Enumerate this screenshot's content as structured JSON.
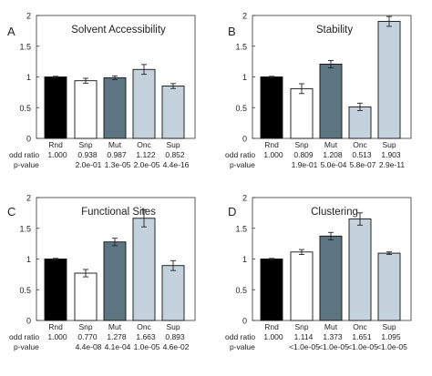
{
  "chart_data": [
    {
      "panel_letter": "A",
      "type": "bar",
      "title": "Solvent Accessibility",
      "categories": [
        "Rnd",
        "Snp",
        "Mut",
        "Onc",
        "Sup"
      ],
      "values": [
        1.0,
        0.938,
        0.987,
        1.122,
        0.852
      ],
      "errors": [
        0.01,
        0.04,
        0.03,
        0.08,
        0.04
      ],
      "odd_ratio_labels": [
        "1.000",
        "0.938",
        "0.987",
        "1.122",
        "0.852"
      ],
      "pvalue_labels": [
        "",
        "2.0e-01",
        "1.3e-05",
        "2.0e-05",
        "4.4e-16"
      ],
      "ylim": [
        0,
        2
      ],
      "yticks": [
        "0",
        "0.5",
        "1",
        "1.5",
        "2"
      ],
      "bar_colors": [
        "#000000",
        "#ffffff",
        "#5c7580",
        "#c3d2dc",
        "#c3d2dc"
      ],
      "row_labels": [
        "odd ratio",
        "p-value"
      ]
    },
    {
      "panel_letter": "B",
      "type": "bar",
      "title": "Stability",
      "categories": [
        "Rnd",
        "Snp",
        "Mut",
        "Onc",
        "Sup"
      ],
      "values": [
        1.0,
        0.809,
        1.208,
        0.513,
        1.903
      ],
      "errors": [
        0.01,
        0.08,
        0.06,
        0.06,
        0.08
      ],
      "odd_ratio_labels": [
        "1.000",
        "0.809",
        "1.208",
        "0.513",
        "1.903"
      ],
      "pvalue_labels": [
        "",
        "1.9e-01",
        "5.0e-04",
        "5.8e-07",
        "2.9e-11"
      ],
      "ylim": [
        0,
        2
      ],
      "yticks": [
        "0",
        "0.5",
        "1",
        "1.5",
        "2"
      ],
      "bar_colors": [
        "#000000",
        "#ffffff",
        "#5c7580",
        "#c3d2dc",
        "#c3d2dc"
      ],
      "row_labels": [
        "odd ratio",
        "p-value"
      ]
    },
    {
      "panel_letter": "C",
      "type": "bar",
      "title": "Functional Sites",
      "categories": [
        "Rnd",
        "Snp",
        "Mut",
        "Onc",
        "Sup"
      ],
      "values": [
        1.0,
        0.77,
        1.278,
        1.663,
        0.893
      ],
      "errors": [
        0.01,
        0.06,
        0.06,
        0.14,
        0.08
      ],
      "odd_ratio_labels": [
        "1.000",
        "0.770",
        "1.278",
        "1.663",
        "0.893"
      ],
      "pvalue_labels": [
        "",
        "4.4e-08",
        "4.1e-04",
        "1.0e-05",
        "4.6e-02"
      ],
      "ylim": [
        0,
        2
      ],
      "yticks": [
        "0",
        "0.5",
        "1",
        "1.5",
        "2"
      ],
      "bar_colors": [
        "#000000",
        "#ffffff",
        "#5c7580",
        "#c3d2dc",
        "#c3d2dc"
      ],
      "row_labels": [
        "odd ratio",
        "p-value"
      ]
    },
    {
      "panel_letter": "D",
      "type": "bar",
      "title": "Clustering",
      "categories": [
        "Rnd",
        "Snp",
        "Mut",
        "Onc",
        "Sup"
      ],
      "values": [
        1.0,
        1.114,
        1.373,
        1.651,
        1.095
      ],
      "errors": [
        0.01,
        0.04,
        0.06,
        0.1,
        0.02
      ],
      "odd_ratio_labels": [
        "1.000",
        "1.114",
        "1.373",
        "1.651",
        "1.095"
      ],
      "pvalue_labels": [
        "",
        "<1.0e-05",
        "<1.0e-05",
        "<1.0e-05",
        "<1.0e-05"
      ],
      "ylim": [
        0,
        2
      ],
      "yticks": [
        "0",
        "0.5",
        "1",
        "1.5",
        "2"
      ],
      "bar_colors": [
        "#000000",
        "#ffffff",
        "#5c7580",
        "#c3d2dc",
        "#c3d2dc"
      ],
      "row_labels": [
        "odd ratio",
        "p-value"
      ]
    }
  ]
}
